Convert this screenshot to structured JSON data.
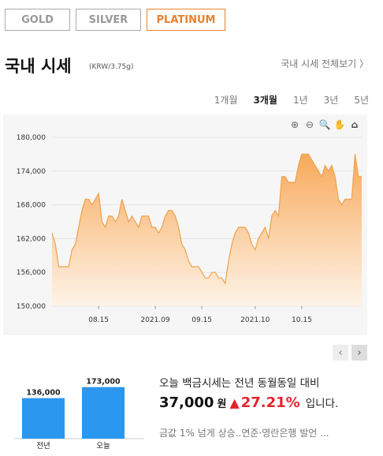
{
  "tabs": [
    {
      "label": "GOLD",
      "active": false
    },
    {
      "label": "SILVER",
      "active": false
    },
    {
      "label": "PLATINUM",
      "active": true
    }
  ],
  "section": {
    "title": "국내 시세",
    "unit": "(KRW/3.75g)",
    "view_all": "국내 시세 전체보기 〉"
  },
  "periods": [
    {
      "label": "1개월",
      "active": false
    },
    {
      "label": "3개월",
      "active": true
    },
    {
      "label": "1년",
      "active": false
    },
    {
      "label": "3년",
      "active": false
    },
    {
      "label": "5년",
      "active": false
    }
  ],
  "tools": [
    {
      "name": "zoom-in-icon",
      "glyph": "⊕"
    },
    {
      "name": "zoom-out-icon",
      "glyph": "⊖"
    },
    {
      "name": "magnifier-icon",
      "glyph": "🔍"
    },
    {
      "name": "pan-hand-icon",
      "glyph": "✋"
    },
    {
      "name": "home-icon",
      "glyph": "⌂"
    }
  ],
  "nav": {
    "prev": "‹",
    "next": "›"
  },
  "colors": {
    "accent": "#e8812c",
    "line": "#f0a24a",
    "up": "#e8232e",
    "bar": "#2b97ee"
  },
  "chart_data": [
    {
      "type": "area",
      "ylim": [
        150000,
        180000
      ],
      "yticks": [
        150000,
        156000,
        162000,
        168000,
        174000,
        180000
      ],
      "ytick_labels": [
        "150,000",
        "156,000",
        "162,000",
        "168,000",
        "174,000",
        "180,000"
      ],
      "xtick_labels": [
        {
          "label": "08.15",
          "at": 14
        },
        {
          "label": "2021.09",
          "at": 31
        },
        {
          "label": "09.15",
          "at": 45
        },
        {
          "label": "2021.10",
          "at": 61
        },
        {
          "label": "10.15",
          "at": 75
        }
      ],
      "values": [
        163000,
        161000,
        157000,
        157000,
        157000,
        157000,
        160000,
        161000,
        164000,
        167000,
        169000,
        169000,
        168000,
        169000,
        170000,
        165000,
        164000,
        166000,
        166000,
        165000,
        166000,
        169000,
        167000,
        165000,
        166000,
        165000,
        164000,
        166000,
        166000,
        166000,
        164000,
        164000,
        163000,
        164000,
        166000,
        167000,
        167000,
        166000,
        164000,
        161000,
        160000,
        158000,
        157000,
        157000,
        157000,
        156000,
        155000,
        155000,
        156000,
        156000,
        155000,
        155000,
        154000,
        158000,
        161000,
        163000,
        164000,
        164000,
        164000,
        163000,
        161000,
        160000,
        162000,
        163000,
        164000,
        162000,
        166000,
        167000,
        166000,
        173000,
        173000,
        172000,
        172000,
        172000,
        175000,
        177000,
        177000,
        177000,
        176000,
        175000,
        174000,
        173000,
        175000,
        174000,
        175000,
        173000,
        169000,
        168000,
        169000,
        169000,
        169000,
        177000,
        173000,
        173000
      ]
    },
    {
      "type": "bar",
      "categories": [
        "전년",
        "오늘"
      ],
      "values": [
        136000,
        173000
      ],
      "value_labels": [
        "136,000",
        "173,000"
      ]
    }
  ],
  "summary": {
    "line1": "오늘 백금시세는 전년 동월동일 대비",
    "amount": "37,000",
    "won": "원",
    "arrow": "▲",
    "pct": "27.21%",
    "ending": "입니다.",
    "news": "금값 1% 넘게 상승..연준·영란은행 발언 ..."
  }
}
